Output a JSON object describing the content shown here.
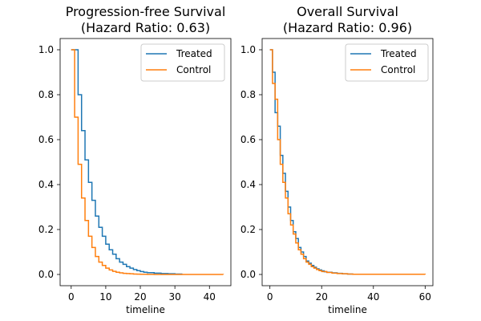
{
  "chart_data": [
    {
      "type": "line",
      "step": true,
      "title_lines": [
        "Progression-free Survival",
        "(Hazard Ratio: 0.63)"
      ],
      "xlabel": "timeline",
      "ylabel": "",
      "xlim": [
        -3.2,
        46.2
      ],
      "ylim": [
        -0.05,
        1.05
      ],
      "xticks": [
        0,
        10,
        20,
        30,
        40
      ],
      "yticks": [
        0.0,
        0.2,
        0.4,
        0.6,
        0.8,
        1.0
      ],
      "legend": {
        "placement": "top-right"
      },
      "series": [
        {
          "name": "Treated",
          "color": "#1f77b4",
          "x": [
            0,
            1,
            2,
            3,
            4,
            5,
            6,
            7,
            8,
            9,
            10,
            11,
            12,
            13,
            14,
            15,
            16,
            17,
            18,
            19,
            20,
            21,
            22,
            24,
            26,
            28,
            30,
            32
          ],
          "y": [
            1.0,
            1.0,
            0.8,
            0.64,
            0.51,
            0.41,
            0.33,
            0.26,
            0.21,
            0.17,
            0.135,
            0.11,
            0.09,
            0.07,
            0.055,
            0.045,
            0.035,
            0.028,
            0.022,
            0.017,
            0.013,
            0.01,
            0.008,
            0.006,
            0.004,
            0.003,
            0.002,
            0.001
          ]
        },
        {
          "name": "Control",
          "color": "#ff7f0e",
          "x": [
            0,
            1,
            2,
            3,
            4,
            5,
            6,
            7,
            8,
            9,
            10,
            11,
            12,
            13,
            14,
            15,
            16,
            17,
            18,
            19,
            20,
            22,
            24,
            44
          ],
          "y": [
            1.0,
            0.7,
            0.49,
            0.34,
            0.24,
            0.17,
            0.12,
            0.08,
            0.055,
            0.04,
            0.028,
            0.02,
            0.014,
            0.01,
            0.007,
            0.005,
            0.004,
            0.003,
            0.002,
            0.0015,
            0.001,
            0.0005,
            0.0002,
            0.0
          ]
        }
      ]
    },
    {
      "type": "line",
      "step": true,
      "title_lines": [
        "Overall Survival",
        "(Hazard Ratio: 0.96)"
      ],
      "xlabel": "timeline",
      "ylabel": "",
      "xlim": [
        -3.0,
        63.0
      ],
      "ylim": [
        -0.05,
        1.05
      ],
      "xticks": [
        0,
        20,
        40,
        60
      ],
      "yticks": [
        0.0,
        0.2,
        0.4,
        0.6,
        0.8,
        1.0
      ],
      "legend": {
        "placement": "top-right"
      },
      "series": [
        {
          "name": "Treated",
          "color": "#1f77b4",
          "x": [
            0,
            1,
            2,
            3,
            4,
            5,
            6,
            7,
            8,
            9,
            10,
            11,
            12,
            13,
            14,
            15,
            16,
            17,
            18,
            19,
            20,
            21,
            22,
            24,
            26,
            28,
            30,
            32
          ],
          "y": [
            1.0,
            0.9,
            0.72,
            0.66,
            0.53,
            0.45,
            0.37,
            0.3,
            0.24,
            0.19,
            0.16,
            0.12,
            0.1,
            0.08,
            0.06,
            0.05,
            0.04,
            0.032,
            0.025,
            0.02,
            0.016,
            0.012,
            0.01,
            0.007,
            0.005,
            0.003,
            0.002,
            0.0
          ]
        },
        {
          "name": "Control",
          "color": "#ff7f0e",
          "x": [
            0,
            1,
            2,
            3,
            4,
            5,
            6,
            7,
            8,
            9,
            10,
            11,
            12,
            13,
            14,
            15,
            16,
            17,
            18,
            19,
            20,
            22,
            24,
            26,
            28,
            30,
            32,
            60
          ],
          "y": [
            1.0,
            0.85,
            0.78,
            0.6,
            0.49,
            0.41,
            0.34,
            0.27,
            0.22,
            0.18,
            0.14,
            0.11,
            0.09,
            0.07,
            0.055,
            0.045,
            0.035,
            0.028,
            0.022,
            0.017,
            0.013,
            0.009,
            0.006,
            0.004,
            0.003,
            0.002,
            0.001,
            0.0
          ]
        }
      ]
    }
  ]
}
